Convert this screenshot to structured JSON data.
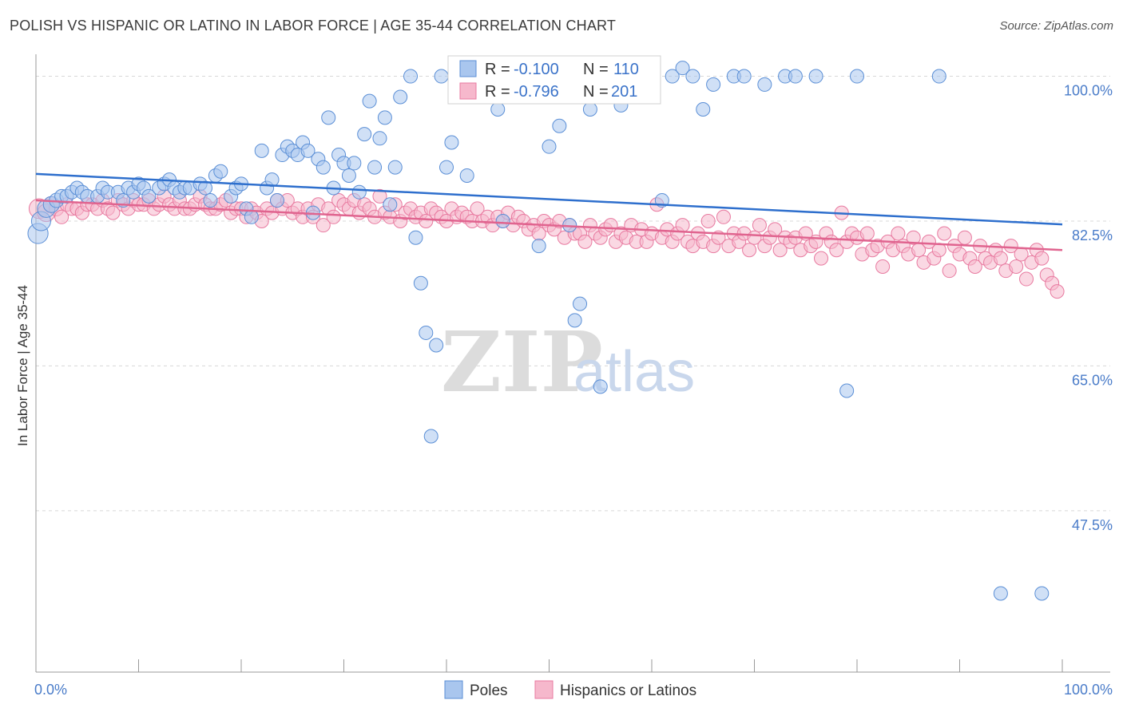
{
  "title": "POLISH VS HISPANIC OR LATINO IN LABOR FORCE | AGE 35-44 CORRELATION CHART",
  "source": "Source: ZipAtlas.com",
  "watermark": {
    "part1": "ZIP",
    "part2": "atlas"
  },
  "colors": {
    "poles_fill": "#a9c6ee",
    "poles_stroke": "#5b8fd6",
    "poles_line": "#2e6fcd",
    "hisp_fill": "#f6b8cc",
    "hisp_stroke": "#e87aa0",
    "hisp_line": "#e0648f",
    "tick_text": "#4a7cc9",
    "grid": "#d8d8d8"
  },
  "legend": {
    "r_label": "R =",
    "n_label": "N =",
    "poles_r": "-0.100",
    "poles_n": "110",
    "hisp_r": "-0.796",
    "hisp_n": "201"
  },
  "bottom_legend": {
    "poles": "Poles",
    "hisp": "Hispanics or Latinos"
  },
  "chart_data": {
    "type": "scatter",
    "title": "POLISH VS HISPANIC OR LATINO IN LABOR FORCE | AGE 35-44 CORRELATION CHART",
    "xlabel": "",
    "ylabel": "In Labor Force | Age 35-44",
    "xlim": [
      0,
      100
    ],
    "ylim": [
      28,
      101.5
    ],
    "x_tick_labels": [
      "0.0%",
      "100.0%"
    ],
    "y_ticks": [
      47.5,
      65.0,
      82.5,
      100.0
    ],
    "y_tick_labels": [
      "47.5%",
      "65.0%",
      "82.5%",
      "100.0%"
    ],
    "grid": true,
    "legend_position": "top-center",
    "series": [
      {
        "name": "Poles",
        "trend": {
          "x": [
            0,
            100
          ],
          "y": [
            88.2,
            82.1
          ]
        },
        "points": [
          [
            0.2,
            81.0
          ],
          [
            0.5,
            82.5
          ],
          [
            1,
            84
          ],
          [
            1.5,
            84.5
          ],
          [
            2,
            85
          ],
          [
            2.5,
            85.5
          ],
          [
            3,
            85.5
          ],
          [
            3.5,
            86
          ],
          [
            4,
            86.5
          ],
          [
            4.5,
            86
          ],
          [
            5,
            85.5
          ],
          [
            6,
            85.5
          ],
          [
            6.5,
            86.5
          ],
          [
            7,
            86
          ],
          [
            8,
            86
          ],
          [
            8.5,
            85
          ],
          [
            9,
            86.5
          ],
          [
            9.5,
            86
          ],
          [
            10,
            87
          ],
          [
            10.5,
            86.5
          ],
          [
            11,
            85.5
          ],
          [
            12,
            86.5
          ],
          [
            12.5,
            87
          ],
          [
            13,
            87.5
          ],
          [
            13.5,
            86.5
          ],
          [
            14,
            86
          ],
          [
            14.5,
            86.5
          ],
          [
            15,
            86.5
          ],
          [
            16,
            87
          ],
          [
            16.5,
            86.5
          ],
          [
            17,
            85
          ],
          [
            17.5,
            88
          ],
          [
            18,
            88.5
          ],
          [
            19,
            85.5
          ],
          [
            19.5,
            86.5
          ],
          [
            20,
            87
          ],
          [
            20.5,
            84
          ],
          [
            21,
            83
          ],
          [
            22,
            91
          ],
          [
            22.5,
            86.5
          ],
          [
            23,
            87.5
          ],
          [
            23.5,
            85
          ],
          [
            24,
            90.5
          ],
          [
            24.5,
            91.5
          ],
          [
            25,
            91
          ],
          [
            25.5,
            90.5
          ],
          [
            26,
            92
          ],
          [
            26.5,
            91
          ],
          [
            27,
            83.5
          ],
          [
            27.5,
            90
          ],
          [
            28,
            89
          ],
          [
            28.5,
            95
          ],
          [
            29,
            86.5
          ],
          [
            29.5,
            90.5
          ],
          [
            30,
            89.5
          ],
          [
            30.5,
            88
          ],
          [
            31,
            89.5
          ],
          [
            31.5,
            86
          ],
          [
            32,
            93
          ],
          [
            32.5,
            97
          ],
          [
            33,
            89
          ],
          [
            33.5,
            92.5
          ],
          [
            34,
            95
          ],
          [
            34.5,
            84.5
          ],
          [
            35,
            89
          ],
          [
            35.5,
            97.5
          ],
          [
            36.5,
            100
          ],
          [
            37,
            80.5
          ],
          [
            37.5,
            75
          ],
          [
            38,
            69
          ],
          [
            38.5,
            56.5
          ],
          [
            39,
            67.5
          ],
          [
            39.5,
            100
          ],
          [
            40,
            89
          ],
          [
            40.5,
            92
          ],
          [
            41,
            100
          ],
          [
            42,
            88
          ],
          [
            43,
            101
          ],
          [
            44,
            100
          ],
          [
            45,
            96
          ],
          [
            45.5,
            82.5
          ],
          [
            46,
            98.5
          ],
          [
            47,
            100
          ],
          [
            48,
            98.5
          ],
          [
            49,
            79.5
          ],
          [
            50,
            91.5
          ],
          [
            51,
            94
          ],
          [
            52,
            82
          ],
          [
            52.5,
            70.5
          ],
          [
            53,
            72.5
          ],
          [
            54,
            96
          ],
          [
            55,
            62.5
          ],
          [
            57,
            96.5
          ],
          [
            57.5,
            99.5
          ],
          [
            59,
            98
          ],
          [
            61,
            85
          ],
          [
            62,
            100
          ],
          [
            63,
            101
          ],
          [
            64,
            100
          ],
          [
            65,
            96
          ],
          [
            66,
            99
          ],
          [
            68,
            100
          ],
          [
            69,
            100
          ],
          [
            71,
            99
          ],
          [
            73,
            100
          ],
          [
            74,
            100
          ],
          [
            76,
            100
          ],
          [
            79,
            62
          ],
          [
            80,
            100
          ],
          [
            88,
            100
          ],
          [
            94,
            37.5
          ],
          [
            98,
            37.5
          ]
        ]
      },
      {
        "name": "Hispanics or Latinos",
        "trend": {
          "x": [
            0,
            100
          ],
          "y": [
            85.0,
            79.0
          ]
        },
        "points": [
          [
            0.3,
            84
          ],
          [
            1,
            83.5
          ],
          [
            1.5,
            84.5
          ],
          [
            2,
            84
          ],
          [
            2.5,
            83
          ],
          [
            3,
            84.5
          ],
          [
            3.5,
            84
          ],
          [
            4,
            84
          ],
          [
            4.5,
            83.5
          ],
          [
            5,
            84.5
          ],
          [
            5.5,
            84.5
          ],
          [
            6,
            84
          ],
          [
            6.5,
            85
          ],
          [
            7,
            84
          ],
          [
            7.5,
            83.5
          ],
          [
            8,
            85
          ],
          [
            8.5,
            84.5
          ],
          [
            9,
            84
          ],
          [
            9.5,
            85
          ],
          [
            10,
            84.5
          ],
          [
            10.5,
            84.5
          ],
          [
            11,
            85
          ],
          [
            11.5,
            84
          ],
          [
            12,
            84.5
          ],
          [
            12.5,
            85.5
          ],
          [
            13,
            84.5
          ],
          [
            13.5,
            84
          ],
          [
            14,
            85
          ],
          [
            14.5,
            84
          ],
          [
            15,
            84
          ],
          [
            15.5,
            84.5
          ],
          [
            16,
            85.5
          ],
          [
            16.5,
            84.5
          ],
          [
            17,
            84
          ],
          [
            17.5,
            84
          ],
          [
            18,
            84.5
          ],
          [
            18.5,
            85
          ],
          [
            19,
            83.5
          ],
          [
            19.5,
            84
          ],
          [
            20,
            84
          ],
          [
            20.5,
            83
          ],
          [
            21,
            84
          ],
          [
            21.5,
            83.5
          ],
          [
            22,
            82.5
          ],
          [
            22.5,
            84
          ],
          [
            23,
            83.5
          ],
          [
            23.5,
            85
          ],
          [
            24,
            84
          ],
          [
            24.5,
            85
          ],
          [
            25,
            83.5
          ],
          [
            25.5,
            84
          ],
          [
            26,
            83
          ],
          [
            26.5,
            84
          ],
          [
            27,
            83
          ],
          [
            27.5,
            84.5
          ],
          [
            28,
            82
          ],
          [
            28.5,
            84
          ],
          [
            29,
            83
          ],
          [
            29.5,
            85
          ],
          [
            30,
            84.5
          ],
          [
            30.5,
            84
          ],
          [
            31,
            85
          ],
          [
            31.5,
            83.5
          ],
          [
            32,
            84.5
          ],
          [
            32.5,
            84
          ],
          [
            33,
            83
          ],
          [
            33.5,
            85.5
          ],
          [
            34,
            83.5
          ],
          [
            34.5,
            83
          ],
          [
            35,
            84.5
          ],
          [
            35.5,
            82.5
          ],
          [
            36,
            83.5
          ],
          [
            36.5,
            84
          ],
          [
            37,
            83
          ],
          [
            37.5,
            83.5
          ],
          [
            38,
            82.5
          ],
          [
            38.5,
            84
          ],
          [
            39,
            83.5
          ],
          [
            39.5,
            83
          ],
          [
            40,
            82.5
          ],
          [
            40.5,
            84
          ],
          [
            41,
            83
          ],
          [
            41.5,
            83.5
          ],
          [
            42,
            83
          ],
          [
            42.5,
            82.5
          ],
          [
            43,
            84
          ],
          [
            43.5,
            82.5
          ],
          [
            44,
            83
          ],
          [
            44.5,
            82
          ],
          [
            45,
            83
          ],
          [
            45.5,
            82.5
          ],
          [
            46,
            83.5
          ],
          [
            46.5,
            82
          ],
          [
            47,
            83
          ],
          [
            47.5,
            82.5
          ],
          [
            48,
            81.5
          ],
          [
            48.5,
            82
          ],
          [
            49,
            81
          ],
          [
            49.5,
            82.5
          ],
          [
            50,
            82
          ],
          [
            50.5,
            81.5
          ],
          [
            51,
            82.5
          ],
          [
            51.5,
            80.5
          ],
          [
            52,
            82
          ],
          [
            52.5,
            81
          ],
          [
            53,
            81
          ],
          [
            53.5,
            80
          ],
          [
            54,
            82
          ],
          [
            54.5,
            81
          ],
          [
            55,
            80.5
          ],
          [
            55.5,
            81.5
          ],
          [
            56,
            82
          ],
          [
            56.5,
            80
          ],
          [
            57,
            81
          ],
          [
            57.5,
            80.5
          ],
          [
            58,
            82
          ],
          [
            58.5,
            80
          ],
          [
            59,
            81.5
          ],
          [
            59.5,
            80
          ],
          [
            60,
            81
          ],
          [
            60.5,
            84.5
          ],
          [
            61,
            80.5
          ],
          [
            61.5,
            81.5
          ],
          [
            62,
            80
          ],
          [
            62.5,
            81
          ],
          [
            63,
            82
          ],
          [
            63.5,
            80
          ],
          [
            64,
            79.5
          ],
          [
            64.5,
            81
          ],
          [
            65,
            80
          ],
          [
            65.5,
            82.5
          ],
          [
            66,
            79.5
          ],
          [
            66.5,
            80.5
          ],
          [
            67,
            83
          ],
          [
            67.5,
            79.5
          ],
          [
            68,
            81
          ],
          [
            68.5,
            80
          ],
          [
            69,
            81
          ],
          [
            69.5,
            79
          ],
          [
            70,
            80.5
          ],
          [
            70.5,
            82
          ],
          [
            71,
            79.5
          ],
          [
            71.5,
            80.5
          ],
          [
            72,
            81.5
          ],
          [
            72.5,
            79
          ],
          [
            73,
            80.5
          ],
          [
            73.5,
            80
          ],
          [
            74,
            80.5
          ],
          [
            74.5,
            79
          ],
          [
            75,
            81
          ],
          [
            75.5,
            79.5
          ],
          [
            76,
            80
          ],
          [
            76.5,
            78
          ],
          [
            77,
            81
          ],
          [
            77.5,
            80
          ],
          [
            78,
            79
          ],
          [
            78.5,
            83.5
          ],
          [
            79,
            80
          ],
          [
            79.5,
            81
          ],
          [
            80,
            80.5
          ],
          [
            80.5,
            78.5
          ],
          [
            81,
            81
          ],
          [
            81.5,
            79
          ],
          [
            82,
            79.5
          ],
          [
            82.5,
            77
          ],
          [
            83,
            80
          ],
          [
            83.5,
            79
          ],
          [
            84,
            81
          ],
          [
            84.5,
            79.5
          ],
          [
            85,
            78.5
          ],
          [
            85.5,
            80.5
          ],
          [
            86,
            79
          ],
          [
            86.5,
            77.5
          ],
          [
            87,
            80
          ],
          [
            87.5,
            78
          ],
          [
            88,
            79
          ],
          [
            88.5,
            81
          ],
          [
            89,
            76.5
          ],
          [
            89.5,
            79.5
          ],
          [
            90,
            78.5
          ],
          [
            90.5,
            80.5
          ],
          [
            91,
            78
          ],
          [
            91.5,
            77
          ],
          [
            92,
            79.5
          ],
          [
            92.5,
            78
          ],
          [
            93,
            77.5
          ],
          [
            93.5,
            79
          ],
          [
            94,
            78
          ],
          [
            94.5,
            76.5
          ],
          [
            95,
            79.5
          ],
          [
            95.5,
            77
          ],
          [
            96,
            78.5
          ],
          [
            96.5,
            75.5
          ],
          [
            97,
            77.5
          ],
          [
            97.5,
            79
          ],
          [
            98,
            78
          ],
          [
            98.5,
            76
          ],
          [
            99,
            75
          ],
          [
            99.5,
            74
          ]
        ]
      }
    ]
  }
}
